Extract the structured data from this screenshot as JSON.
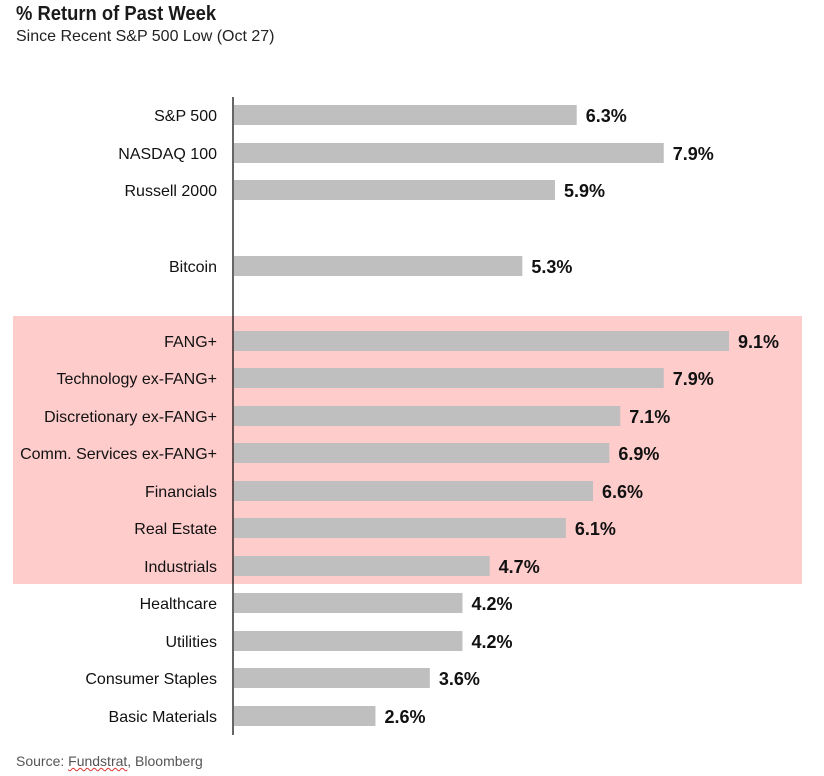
{
  "chart_data": {
    "type": "bar",
    "orientation": "horizontal",
    "title": "% Return of Past Week",
    "subtitle": "Since Recent S&P 500 Low (Oct 27)",
    "xlim": [
      0,
      10
    ],
    "grid": false,
    "legend": "none",
    "categories": [
      "S&P 500",
      "NASDAQ 100",
      "Russell 2000",
      "Bitcoin",
      "FANG+",
      "Technology ex-FANG+",
      "Discretionary ex-FANG+",
      "Comm. Services ex-FANG+",
      "Financials",
      "Real Estate",
      "Industrials",
      "Healthcare",
      "Utilities",
      "Consumer Staples",
      "Basic Materials"
    ],
    "values": [
      6.3,
      7.9,
      5.9,
      5.3,
      9.1,
      7.9,
      7.1,
      6.9,
      6.6,
      6.1,
      4.7,
      4.2,
      4.2,
      3.6,
      2.6
    ],
    "value_labels": [
      "6.3%",
      "7.9%",
      "5.9%",
      "5.3%",
      "9.1%",
      "7.9%",
      "7.1%",
      "6.9%",
      "6.6%",
      "6.1%",
      "4.7%",
      "4.2%",
      "4.2%",
      "3.6%",
      "2.6%"
    ],
    "highlighted_categories": [
      "FANG+",
      "Technology ex-FANG+",
      "Discretionary ex-FANG+",
      "Comm. Services ex-FANG+",
      "Financials",
      "Real Estate",
      "Industrials"
    ],
    "colors": {
      "bar": "#bfbfbf",
      "highlight": "#ffcccc",
      "axis": "#000000"
    }
  },
  "source": {
    "prefix": "Source: ",
    "name1": "Fundstrat",
    "rest": ", Bloomberg"
  }
}
